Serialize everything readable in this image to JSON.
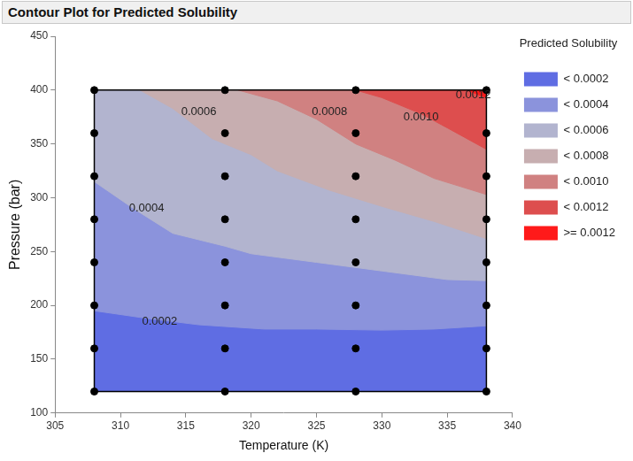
{
  "chart_data": {
    "type": "contour",
    "title": "Contour Plot for Predicted Solubility",
    "x_label": "Temperature (K)",
    "y_label": "Pressure (bar)",
    "xlim": [
      305,
      340
    ],
    "xticks": [
      305,
      310,
      315,
      320,
      325,
      330,
      335,
      340
    ],
    "ylim": [
      100,
      450
    ],
    "yticks": [
      100,
      150,
      200,
      250,
      300,
      350,
      400,
      450
    ],
    "grid": false,
    "legend": "right",
    "legend_title": "Predicted Solubility",
    "bands": [
      {
        "label": "< 0.0002",
        "color": "#5f6de3"
      },
      {
        "label": "< 0.0004",
        "color": "#8b93dc"
      },
      {
        "label": "< 0.0006",
        "color": "#b2b4cf"
      },
      {
        "label": "< 0.0008",
        "color": "#c7aeb0"
      },
      {
        "label": "< 0.0010",
        "color": "#d08181"
      },
      {
        "label": "< 0.0012",
        "color": "#dd4e4e"
      },
      {
        "label": ">= 0.0012",
        "color": "#ff1a1a"
      }
    ],
    "contours": [
      {
        "label": "0.0002",
        "label_x": 313,
        "label_y": 185,
        "x": [
          308,
          312,
          316,
          321,
          325,
          330,
          334,
          338
        ],
        "y": [
          195,
          188,
          182,
          178,
          178,
          177,
          178,
          181
        ]
      },
      {
        "label": "0.0004",
        "label_x": 312,
        "label_y": 290,
        "x": [
          308,
          311,
          314,
          318,
          320,
          325,
          330,
          335,
          338
        ],
        "y": [
          315,
          290,
          267,
          255,
          248,
          240,
          232,
          224,
          223
        ]
      },
      {
        "label": "0.0006",
        "label_x": 316,
        "label_y": 380,
        "x": [
          311.5,
          314,
          317,
          320,
          322,
          326,
          330,
          334,
          338
        ],
        "y": [
          400,
          383,
          355,
          340,
          325,
          307,
          292,
          278,
          262
        ]
      },
      {
        "label": "0.0008",
        "label_x": 326,
        "label_y": 380,
        "x": [
          319,
          322,
          325,
          328,
          331,
          334,
          338
        ],
        "y": [
          400,
          390,
          373,
          350,
          335,
          318,
          303
        ]
      },
      {
        "label": "0.0010",
        "label_x": 333,
        "label_y": 375,
        "x": [
          328,
          330,
          333,
          335,
          338
        ],
        "y": [
          400,
          393,
          378,
          365,
          345
        ]
      },
      {
        "label": "0.0012",
        "label_x": 337,
        "label_y": 395,
        "x": [
          336.5,
          338
        ],
        "y": [
          400,
          393
        ]
      }
    ],
    "points": {
      "x": [
        308,
        308,
        308,
        308,
        308,
        308,
        308,
        308,
        318,
        318,
        318,
        318,
        318,
        318,
        318,
        318,
        328,
        328,
        328,
        328,
        328,
        328,
        328,
        328,
        338,
        338,
        338,
        338,
        338,
        338,
        338,
        338
      ],
      "y": [
        120,
        160,
        200,
        240,
        280,
        320,
        360,
        400,
        120,
        160,
        200,
        240,
        280,
        320,
        360,
        400,
        120,
        160,
        200,
        240,
        280,
        320,
        360,
        400,
        120,
        160,
        200,
        240,
        280,
        320,
        360,
        400
      ]
    },
    "marker": "circle",
    "color": "#000000"
  }
}
